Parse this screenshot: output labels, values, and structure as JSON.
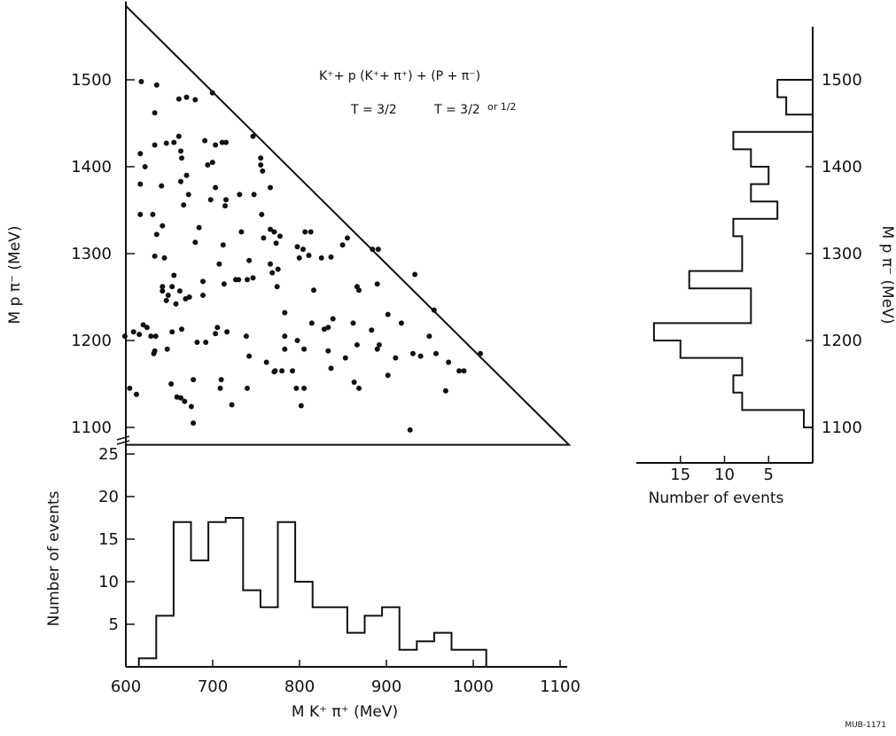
{
  "figure_credit": "MUB-1171",
  "chart_data": [
    {
      "type": "scatter",
      "name": "dalitz",
      "annotation_line1": "K⁺+ p      (K⁺+ π⁺) + (P + π⁻)",
      "annotation_line2_a": "T = 3/2",
      "annotation_line2_b": "T = 3/2",
      "annotation_line2_c": "or 1/2",
      "xlim": [
        600,
        1100
      ],
      "ylim": [
        1080,
        1590
      ],
      "yticks": [
        1100,
        1200,
        1300,
        1400,
        1500
      ],
      "ylabel": "M p π⁻ (MeV)",
      "boundary": [
        [
          640,
          1585
        ],
        [
          640,
          1080
        ],
        [
          1100,
          1080
        ]
      ],
      "points": [
        [
          656,
          1498
        ],
        [
          672,
          1494
        ],
        [
          730,
          1485
        ],
        [
          695,
          1478
        ],
        [
          703,
          1480
        ],
        [
          712,
          1477
        ],
        [
          670,
          1462
        ],
        [
          772,
          1435
        ],
        [
          695,
          1435
        ],
        [
          690,
          1428
        ],
        [
          722,
          1430
        ],
        [
          740,
          1428
        ],
        [
          744,
          1428
        ],
        [
          733,
          1425
        ],
        [
          682,
          1427
        ],
        [
          670,
          1425
        ],
        [
          697,
          1418
        ],
        [
          655,
          1415
        ],
        [
          698,
          1410
        ],
        [
          780,
          1410
        ],
        [
          780,
          1402
        ],
        [
          660,
          1400
        ],
        [
          725,
          1402
        ],
        [
          730,
          1405
        ],
        [
          782,
          1395
        ],
        [
          703,
          1390
        ],
        [
          697,
          1383
        ],
        [
          655,
          1380
        ],
        [
          677,
          1378
        ],
        [
          733,
          1376
        ],
        [
          790,
          1376
        ],
        [
          758,
          1368
        ],
        [
          705,
          1368
        ],
        [
          773,
          1368
        ],
        [
          728,
          1362
        ],
        [
          744,
          1362
        ],
        [
          743,
          1355
        ],
        [
          700,
          1356
        ],
        [
          655,
          1345
        ],
        [
          668,
          1345
        ],
        [
          781,
          1345
        ],
        [
          678,
          1332
        ],
        [
          716,
          1330
        ],
        [
          760,
          1325
        ],
        [
          790,
          1328
        ],
        [
          794,
          1325
        ],
        [
          800,
          1320
        ],
        [
          826,
          1325
        ],
        [
          832,
          1325
        ],
        [
          672,
          1322
        ],
        [
          783,
          1318
        ],
        [
          870,
          1318
        ],
        [
          712,
          1313
        ],
        [
          741,
          1310
        ],
        [
          796,
          1312
        ],
        [
          865,
          1310
        ],
        [
          824,
          1305
        ],
        [
          818,
          1308
        ],
        [
          896,
          1305
        ],
        [
          902,
          1305
        ],
        [
          670,
          1297
        ],
        [
          680,
          1295
        ],
        [
          830,
          1298
        ],
        [
          853,
          1296
        ],
        [
          843,
          1295
        ],
        [
          820,
          1295
        ],
        [
          768,
          1292
        ],
        [
          790,
          1288
        ],
        [
          798,
          1282
        ],
        [
          737,
          1288
        ],
        [
          690,
          1275
        ],
        [
          792,
          1278
        ],
        [
          940,
          1276
        ],
        [
          754,
          1270
        ],
        [
          772,
          1272
        ],
        [
          757,
          1270
        ],
        [
          766,
          1270
        ],
        [
          720,
          1268
        ],
        [
          678,
          1262
        ],
        [
          688,
          1262
        ],
        [
          742,
          1265
        ],
        [
          797,
          1262
        ],
        [
          901,
          1265
        ],
        [
          678,
          1257
        ],
        [
          696,
          1257
        ],
        [
          684,
          1252
        ],
        [
          682,
          1246
        ],
        [
          702,
          1248
        ],
        [
          706,
          1250
        ],
        [
          880,
          1262
        ],
        [
          882,
          1258
        ],
        [
          720,
          1252
        ],
        [
          835,
          1258
        ],
        [
          692,
          1242
        ],
        [
          912,
          1230
        ],
        [
          805,
          1232
        ],
        [
          960,
          1235
        ],
        [
          658,
          1218
        ],
        [
          662,
          1215
        ],
        [
          735,
          1215
        ],
        [
          648,
          1210
        ],
        [
          688,
          1210
        ],
        [
          671,
          1205
        ],
        [
          698,
          1213
        ],
        [
          745,
          1210
        ],
        [
          855,
          1225
        ],
        [
          876,
          1220
        ],
        [
          926,
          1220
        ],
        [
          833,
          1220
        ],
        [
          846,
          1213
        ],
        [
          850,
          1215
        ],
        [
          639,
          1205
        ],
        [
          654,
          1207
        ],
        [
          666,
          1205
        ],
        [
          733,
          1208
        ],
        [
          765,
          1205
        ],
        [
          805,
          1205
        ],
        [
          895,
          1212
        ],
        [
          818,
          1200
        ],
        [
          723,
          1198
        ],
        [
          714,
          1198
        ],
        [
          955,
          1205
        ],
        [
          670,
          1188
        ],
        [
          669,
          1185
        ],
        [
          683,
          1190
        ],
        [
          903,
          1195
        ],
        [
          880,
          1195
        ],
        [
          901,
          1190
        ],
        [
          805,
          1190
        ],
        [
          825,
          1190
        ],
        [
          850,
          1188
        ],
        [
          938,
          1185
        ],
        [
          962,
          1185
        ],
        [
          1008,
          1185
        ],
        [
          946,
          1182
        ],
        [
          920,
          1180
        ],
        [
          768,
          1182
        ],
        [
          868,
          1180
        ],
        [
          786,
          1175
        ],
        [
          975,
          1175
        ],
        [
          795,
          1165
        ],
        [
          794,
          1164
        ],
        [
          853,
          1168
        ],
        [
          802,
          1165
        ],
        [
          813,
          1165
        ],
        [
          986,
          1165
        ],
        [
          991,
          1165
        ],
        [
          912,
          1160
        ],
        [
          710,
          1155
        ],
        [
          739,
          1155
        ],
        [
          877,
          1152
        ],
        [
          687,
          1150
        ],
        [
          644,
          1145
        ],
        [
          738,
          1145
        ],
        [
          817,
          1145
        ],
        [
          825,
          1145
        ],
        [
          766,
          1145
        ],
        [
          882,
          1145
        ],
        [
          972,
          1142
        ],
        [
          651,
          1138
        ],
        [
          693,
          1135
        ],
        [
          697,
          1134
        ],
        [
          701,
          1130
        ],
        [
          708,
          1124
        ],
        [
          750,
          1126
        ],
        [
          822,
          1125
        ],
        [
          710,
          1105
        ],
        [
          935,
          1097
        ]
      ]
    },
    {
      "type": "bar",
      "name": "bottom-histogram",
      "orientation": "vertical",
      "xlabel": "M K⁺ π⁺ (MeV)",
      "ylabel": "Number of events",
      "xlim": [
        600,
        1100
      ],
      "ylim": [
        0,
        25
      ],
      "xticks": [
        600,
        700,
        800,
        900,
        1000,
        1100
      ],
      "yticks": [
        5,
        10,
        15,
        20,
        25
      ],
      "bin_edges": [
        615,
        635,
        655,
        675,
        695,
        715,
        735,
        755,
        775,
        795,
        815,
        835,
        855,
        875,
        895,
        915,
        935,
        955,
        975,
        995,
        1015
      ],
      "values": [
        1,
        6,
        17,
        12.5,
        17,
        17.5,
        9,
        7,
        17,
        10,
        7,
        7,
        4,
        6,
        7,
        2,
        3,
        4,
        2,
        2
      ]
    },
    {
      "type": "bar",
      "name": "side-histogram",
      "orientation": "horizontal",
      "xlabel": "Number of events",
      "ylabel": "M p π⁻ (MeV)",
      "xticks": [
        15,
        10,
        5
      ],
      "yticks": [
        1100,
        1200,
        1300,
        1400,
        1500
      ],
      "ylim": [
        1080,
        1590
      ],
      "bin_edges": [
        1080,
        1100,
        1120,
        1140,
        1160,
        1180,
        1200,
        1220,
        1240,
        1260,
        1280,
        1300,
        1320,
        1340,
        1360,
        1380,
        1400,
        1420,
        1440,
        1460,
        1480,
        1500
      ],
      "values": [
        0,
        1,
        8,
        9,
        8,
        15,
        18,
        7,
        7,
        14,
        8,
        8,
        9,
        4,
        7,
        5,
        7,
        9,
        0,
        3,
        4
      ]
    }
  ]
}
